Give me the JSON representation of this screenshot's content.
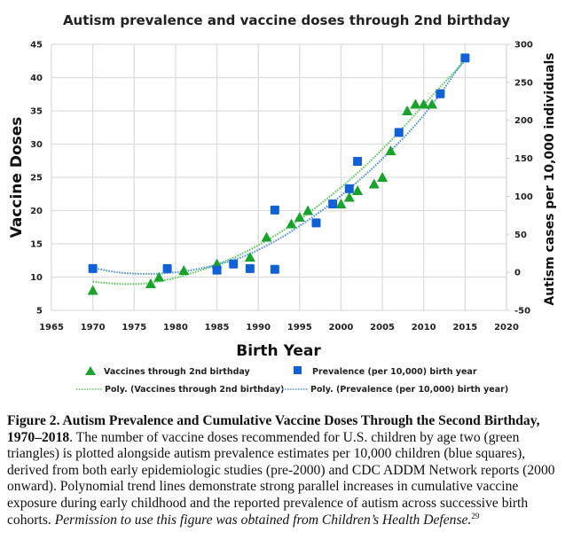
{
  "chart_data": {
    "type": "scatter",
    "title": "Autism prevalence and vaccine doses through 2nd birthday",
    "xlabel": "Birth Year",
    "ylabel": "Vaccine Doses",
    "y2label": "Autism cases per 10,000 individuals",
    "xlim": [
      1965,
      2020
    ],
    "ylim": [
      5,
      45
    ],
    "y2lim": [
      -50,
      300
    ],
    "x_ticks": [
      1965,
      1970,
      1975,
      1980,
      1985,
      1990,
      1995,
      2000,
      2005,
      2010,
      2015,
      2020
    ],
    "y_ticks": [
      5,
      10,
      15,
      20,
      25,
      30,
      35,
      40,
      45
    ],
    "y2_ticks": [
      -50,
      0,
      50,
      100,
      150,
      200,
      250,
      300
    ],
    "grid": true,
    "legend_position": "bottom",
    "series": [
      {
        "name": "Vaccines through 2nd birthday",
        "axis": "left",
        "marker": "triangle",
        "color": "#1AA32A",
        "points": [
          [
            1970,
            8
          ],
          [
            1977,
            9
          ],
          [
            1978,
            10
          ],
          [
            1981,
            11
          ],
          [
            1985,
            12
          ],
          [
            1989,
            13
          ],
          [
            1991,
            16
          ],
          [
            1994,
            18
          ],
          [
            1995,
            19
          ],
          [
            1996,
            20
          ],
          [
            2000,
            21
          ],
          [
            2001,
            22
          ],
          [
            2002,
            23
          ],
          [
            2004,
            24
          ],
          [
            2005,
            25
          ],
          [
            2006,
            29
          ],
          [
            2008,
            35
          ],
          [
            2009,
            36
          ],
          [
            2010,
            36
          ],
          [
            2011,
            36
          ]
        ]
      },
      {
        "name": "Prevalence (per 10,000) birth year",
        "axis": "right",
        "marker": "square",
        "color": "#1060D8",
        "points": [
          [
            1970,
            5
          ],
          [
            1979,
            5
          ],
          [
            1985,
            3
          ],
          [
            1987,
            11
          ],
          [
            1989,
            5
          ],
          [
            1992,
            82
          ],
          [
            1992,
            4
          ],
          [
            1997,
            65
          ],
          [
            1999,
            90
          ],
          [
            2001,
            110
          ],
          [
            2002,
            146
          ],
          [
            2007,
            184
          ],
          [
            2012,
            235
          ],
          [
            2015,
            282
          ]
        ]
      },
      {
        "name": "Poly. (Vaccines through 2nd birthday)",
        "axis": "left",
        "type": "trendline",
        "style": "dotted",
        "color": "#5CC85C",
        "points": [
          [
            1970,
            9.3
          ],
          [
            1973,
            9.0
          ],
          [
            1976,
            9.0
          ],
          [
            1979,
            9.6
          ],
          [
            1982,
            10.6
          ],
          [
            1985,
            11.9
          ],
          [
            1988,
            13.5
          ],
          [
            1991,
            15.5
          ],
          [
            1994,
            17.8
          ],
          [
            1997,
            20.5
          ],
          [
            2000,
            23.5
          ],
          [
            2003,
            26.8
          ],
          [
            2006,
            30.5
          ],
          [
            2009,
            34.5
          ],
          [
            2012,
            38.6
          ],
          [
            2015,
            42.5
          ]
        ]
      },
      {
        "name": "Poly. (Prevalence (per 10,000) birth year)",
        "axis": "right",
        "type": "trendline",
        "style": "dotted",
        "color": "#4A90E2",
        "points": [
          [
            1970,
            6
          ],
          [
            1973,
            0
          ],
          [
            1976,
            -2
          ],
          [
            1979,
            -1
          ],
          [
            1982,
            3
          ],
          [
            1985,
            10
          ],
          [
            1988,
            20
          ],
          [
            1991,
            35
          ],
          [
            1994,
            54
          ],
          [
            1997,
            76
          ],
          [
            2000,
            101
          ],
          [
            2003,
            129
          ],
          [
            2006,
            160
          ],
          [
            2009,
            194
          ],
          [
            2012,
            235
          ],
          [
            2015,
            282
          ]
        ]
      }
    ]
  },
  "caption": {
    "bold": "Figure 2. Autism Prevalence and Cumulative Vaccine Doses Through the Second Birthday, 1970–2018",
    "body": ". The number of vaccine doses recommended for U.S. children by age two (green triangles) is plotted alongside autism prevalence estimates per 10,000 children (blue squares), derived from both early epidemiologic studies (pre-2000) and CDC ADDM Network reports (2000 onward). Polynomial trend lines demonstrate strong parallel increases in cumulative vaccine exposure during early childhood and the reported prevalence of autism across successive birth cohorts. ",
    "italic": "Permission to use this figure was obtained from Children’s Health Defense.",
    "superscript": "29"
  }
}
